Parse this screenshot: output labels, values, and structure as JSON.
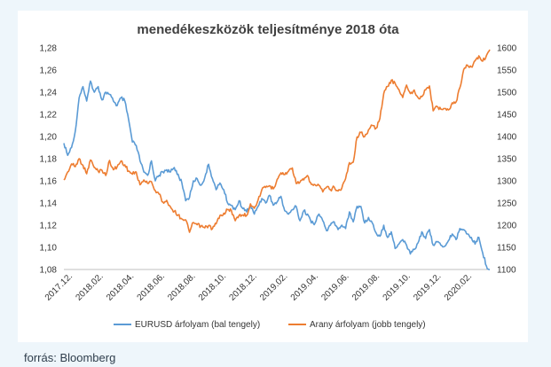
{
  "source": "forrás: Bloomberg",
  "chart_data": {
    "type": "line",
    "title": "menedékeszközök teljesítménye 2018 óta",
    "x_tick_labels": [
      "2017.12.",
      "2018.02.",
      "2018.04.",
      "2018.06.",
      "2018.08.",
      "2018.10.",
      "2018.12.",
      "2019.02.",
      "2019.04.",
      "2019.06.",
      "2019.08.",
      "2019.10.",
      "2019.12.",
      "2020.02."
    ],
    "x_range": [
      "2017-12-29",
      "2020-02-20"
    ],
    "y_left": {
      "range": [
        1.08,
        1.28
      ],
      "ticks": [
        "1,08",
        "1,10",
        "1,12",
        "1,14",
        "1,16",
        "1,18",
        "1,20",
        "1,22",
        "1,24",
        "1,26",
        "1,28"
      ]
    },
    "y_right": {
      "range": [
        1100,
        1600
      ],
      "ticks": [
        "1100",
        "1150",
        "1200",
        "1250",
        "1300",
        "1350",
        "1400",
        "1450",
        "1500",
        "1550",
        "1600"
      ]
    },
    "grid": false,
    "legend_position": "bottom",
    "series": [
      {
        "name": "EURUSD árfolyam (bal tengely)",
        "axis": "left",
        "color": "#5b9bd5",
        "points": [
          [
            "2017-12-29",
            1.194
          ],
          [
            "2018-01-05",
            1.183
          ],
          [
            "2018-01-12",
            1.19
          ],
          [
            "2018-01-19",
            1.205
          ],
          [
            "2018-01-26",
            1.235
          ],
          [
            "2018-02-02",
            1.245
          ],
          [
            "2018-02-09",
            1.232
          ],
          [
            "2018-02-16",
            1.25
          ],
          [
            "2018-02-23",
            1.24
          ],
          [
            "2018-03-02",
            1.245
          ],
          [
            "2018-03-09",
            1.233
          ],
          [
            "2018-03-16",
            1.24
          ],
          [
            "2018-03-23",
            1.238
          ],
          [
            "2018-03-30",
            1.232
          ],
          [
            "2018-04-06",
            1.228
          ],
          [
            "2018-04-13",
            1.235
          ],
          [
            "2018-04-20",
            1.232
          ],
          [
            "2018-04-27",
            1.215
          ],
          [
            "2018-05-04",
            1.195
          ],
          [
            "2018-05-11",
            1.192
          ],
          [
            "2018-05-18",
            1.178
          ],
          [
            "2018-05-25",
            1.168
          ],
          [
            "2018-06-01",
            1.165
          ],
          [
            "2018-06-08",
            1.178
          ],
          [
            "2018-06-15",
            1.16
          ],
          [
            "2018-06-22",
            1.165
          ],
          [
            "2018-06-29",
            1.168
          ],
          [
            "2018-07-06",
            1.17
          ],
          [
            "2018-07-13",
            1.168
          ],
          [
            "2018-07-20",
            1.172
          ],
          [
            "2018-07-27",
            1.166
          ],
          [
            "2018-08-03",
            1.158
          ],
          [
            "2018-08-10",
            1.142
          ],
          [
            "2018-08-17",
            1.145
          ],
          [
            "2018-08-24",
            1.16
          ],
          [
            "2018-08-31",
            1.162
          ],
          [
            "2018-09-07",
            1.156
          ],
          [
            "2018-09-14",
            1.163
          ],
          [
            "2018-09-21",
            1.175
          ],
          [
            "2018-09-28",
            1.162
          ],
          [
            "2018-10-05",
            1.152
          ],
          [
            "2018-10-12",
            1.158
          ],
          [
            "2018-10-19",
            1.152
          ],
          [
            "2018-10-26",
            1.14
          ],
          [
            "2018-11-02",
            1.138
          ],
          [
            "2018-11-09",
            1.134
          ],
          [
            "2018-11-16",
            1.142
          ],
          [
            "2018-11-23",
            1.135
          ],
          [
            "2018-11-30",
            1.132
          ],
          [
            "2018-12-07",
            1.138
          ],
          [
            "2018-12-14",
            1.13
          ],
          [
            "2018-12-21",
            1.137
          ],
          [
            "2018-12-28",
            1.144
          ],
          [
            "2019-01-04",
            1.14
          ],
          [
            "2019-01-11",
            1.147
          ],
          [
            "2019-01-18",
            1.138
          ],
          [
            "2019-01-25",
            1.141
          ],
          [
            "2019-02-01",
            1.146
          ],
          [
            "2019-02-08",
            1.133
          ],
          [
            "2019-02-15",
            1.13
          ],
          [
            "2019-02-22",
            1.134
          ],
          [
            "2019-03-01",
            1.137
          ],
          [
            "2019-03-08",
            1.124
          ],
          [
            "2019-03-15",
            1.133
          ],
          [
            "2019-03-22",
            1.13
          ],
          [
            "2019-03-29",
            1.122
          ],
          [
            "2019-04-05",
            1.122
          ],
          [
            "2019-04-12",
            1.13
          ],
          [
            "2019-04-19",
            1.124
          ],
          [
            "2019-04-26",
            1.115
          ],
          [
            "2019-05-03",
            1.12
          ],
          [
            "2019-05-10",
            1.123
          ],
          [
            "2019-05-17",
            1.116
          ],
          [
            "2019-05-24",
            1.12
          ],
          [
            "2019-05-31",
            1.117
          ],
          [
            "2019-06-07",
            1.132
          ],
          [
            "2019-06-14",
            1.123
          ],
          [
            "2019-06-21",
            1.137
          ],
          [
            "2019-06-28",
            1.137
          ],
          [
            "2019-07-05",
            1.122
          ],
          [
            "2019-07-12",
            1.127
          ],
          [
            "2019-07-19",
            1.122
          ],
          [
            "2019-07-26",
            1.113
          ],
          [
            "2019-08-02",
            1.11
          ],
          [
            "2019-08-09",
            1.12
          ],
          [
            "2019-08-16",
            1.109
          ],
          [
            "2019-08-23",
            1.114
          ],
          [
            "2019-08-30",
            1.099
          ],
          [
            "2019-09-06",
            1.103
          ],
          [
            "2019-09-13",
            1.107
          ],
          [
            "2019-09-20",
            1.102
          ],
          [
            "2019-09-27",
            1.094
          ],
          [
            "2019-10-04",
            1.098
          ],
          [
            "2019-10-11",
            1.104
          ],
          [
            "2019-10-18",
            1.114
          ],
          [
            "2019-10-25",
            1.108
          ],
          [
            "2019-11-01",
            1.116
          ],
          [
            "2019-11-08",
            1.102
          ],
          [
            "2019-11-15",
            1.105
          ],
          [
            "2019-11-22",
            1.102
          ],
          [
            "2019-11-29",
            1.101
          ],
          [
            "2019-12-06",
            1.106
          ],
          [
            "2019-12-13",
            1.112
          ],
          [
            "2019-12-20",
            1.107
          ],
          [
            "2019-12-27",
            1.117
          ],
          [
            "2020-01-03",
            1.116
          ],
          [
            "2020-01-10",
            1.112
          ],
          [
            "2020-01-17",
            1.109
          ],
          [
            "2020-01-24",
            1.103
          ],
          [
            "2020-01-31",
            1.109
          ],
          [
            "2020-02-07",
            1.095
          ],
          [
            "2020-02-14",
            1.083
          ],
          [
            "2020-02-20",
            1.08
          ]
        ]
      },
      {
        "name": "Arany árfolyam (jobb tengely)",
        "axis": "right",
        "color": "#ed7d31",
        "points": [
          [
            "2017-12-29",
            1302
          ],
          [
            "2018-01-05",
            1320
          ],
          [
            "2018-01-12",
            1338
          ],
          [
            "2018-01-19",
            1332
          ],
          [
            "2018-01-26",
            1350
          ],
          [
            "2018-02-02",
            1335
          ],
          [
            "2018-02-09",
            1316
          ],
          [
            "2018-02-16",
            1347
          ],
          [
            "2018-02-23",
            1330
          ],
          [
            "2018-03-02",
            1322
          ],
          [
            "2018-03-09",
            1324
          ],
          [
            "2018-03-16",
            1312
          ],
          [
            "2018-03-23",
            1346
          ],
          [
            "2018-03-30",
            1325
          ],
          [
            "2018-04-06",
            1332
          ],
          [
            "2018-04-13",
            1345
          ],
          [
            "2018-04-20",
            1336
          ],
          [
            "2018-04-27",
            1322
          ],
          [
            "2018-05-04",
            1315
          ],
          [
            "2018-05-11",
            1320
          ],
          [
            "2018-05-18",
            1291
          ],
          [
            "2018-05-25",
            1302
          ],
          [
            "2018-06-01",
            1294
          ],
          [
            "2018-06-08",
            1298
          ],
          [
            "2018-06-15",
            1278
          ],
          [
            "2018-06-22",
            1270
          ],
          [
            "2018-06-29",
            1252
          ],
          [
            "2018-07-06",
            1256
          ],
          [
            "2018-07-13",
            1241
          ],
          [
            "2018-07-20",
            1231
          ],
          [
            "2018-07-27",
            1223
          ],
          [
            "2018-08-03",
            1214
          ],
          [
            "2018-08-10",
            1212
          ],
          [
            "2018-08-17",
            1184
          ],
          [
            "2018-08-24",
            1206
          ],
          [
            "2018-08-31",
            1201
          ],
          [
            "2018-09-07",
            1198
          ],
          [
            "2018-09-14",
            1194
          ],
          [
            "2018-09-21",
            1199
          ],
          [
            "2018-09-28",
            1192
          ],
          [
            "2018-10-05",
            1203
          ],
          [
            "2018-10-12",
            1222
          ],
          [
            "2018-10-19",
            1227
          ],
          [
            "2018-10-26",
            1235
          ],
          [
            "2018-11-02",
            1233
          ],
          [
            "2018-11-09",
            1210
          ],
          [
            "2018-11-16",
            1222
          ],
          [
            "2018-11-23",
            1223
          ],
          [
            "2018-11-30",
            1222
          ],
          [
            "2018-12-07",
            1248
          ],
          [
            "2018-12-14",
            1238
          ],
          [
            "2018-12-21",
            1257
          ],
          [
            "2018-12-28",
            1280
          ],
          [
            "2019-01-04",
            1285
          ],
          [
            "2019-01-11",
            1289
          ],
          [
            "2019-01-18",
            1282
          ],
          [
            "2019-01-25",
            1303
          ],
          [
            "2019-02-01",
            1318
          ],
          [
            "2019-02-08",
            1314
          ],
          [
            "2019-02-15",
            1322
          ],
          [
            "2019-02-22",
            1329
          ],
          [
            "2019-03-01",
            1294
          ],
          [
            "2019-03-08",
            1297
          ],
          [
            "2019-03-15",
            1302
          ],
          [
            "2019-03-22",
            1312
          ],
          [
            "2019-03-29",
            1292
          ],
          [
            "2019-04-05",
            1291
          ],
          [
            "2019-04-12",
            1290
          ],
          [
            "2019-04-19",
            1275
          ],
          [
            "2019-04-26",
            1286
          ],
          [
            "2019-05-03",
            1280
          ],
          [
            "2019-05-10",
            1286
          ],
          [
            "2019-05-17",
            1277
          ],
          [
            "2019-05-24",
            1284
          ],
          [
            "2019-05-31",
            1305
          ],
          [
            "2019-06-07",
            1341
          ],
          [
            "2019-06-14",
            1342
          ],
          [
            "2019-06-21",
            1399
          ],
          [
            "2019-06-28",
            1409
          ],
          [
            "2019-07-05",
            1400
          ],
          [
            "2019-07-12",
            1415
          ],
          [
            "2019-07-19",
            1425
          ],
          [
            "2019-07-26",
            1419
          ],
          [
            "2019-08-02",
            1441
          ],
          [
            "2019-08-09",
            1497
          ],
          [
            "2019-08-16",
            1513
          ],
          [
            "2019-08-23",
            1527
          ],
          [
            "2019-08-30",
            1520
          ],
          [
            "2019-09-06",
            1506
          ],
          [
            "2019-09-13",
            1488
          ],
          [
            "2019-09-20",
            1516
          ],
          [
            "2019-09-27",
            1497
          ],
          [
            "2019-10-04",
            1505
          ],
          [
            "2019-10-11",
            1488
          ],
          [
            "2019-10-18",
            1490
          ],
          [
            "2019-10-25",
            1505
          ],
          [
            "2019-11-01",
            1514
          ],
          [
            "2019-11-08",
            1458
          ],
          [
            "2019-11-15",
            1468
          ],
          [
            "2019-11-22",
            1462
          ],
          [
            "2019-11-29",
            1463
          ],
          [
            "2019-12-06",
            1460
          ],
          [
            "2019-12-13",
            1476
          ],
          [
            "2019-12-20",
            1478
          ],
          [
            "2019-12-27",
            1510
          ],
          [
            "2020-01-03",
            1551
          ],
          [
            "2020-01-10",
            1561
          ],
          [
            "2020-01-17",
            1557
          ],
          [
            "2020-01-24",
            1571
          ],
          [
            "2020-01-31",
            1582
          ],
          [
            "2020-02-07",
            1570
          ],
          [
            "2020-02-14",
            1583
          ],
          [
            "2020-02-20",
            1596
          ]
        ]
      }
    ]
  }
}
